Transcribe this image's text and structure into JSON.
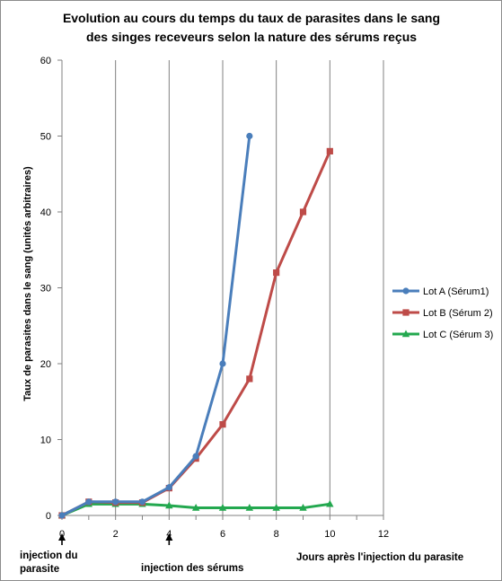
{
  "chart_data": {
    "type": "line",
    "title_line1": "Evolution au cours du temps du taux de parasites dans le sang",
    "title_line2": "des singes receveurs selon la nature des sérums reçus",
    "xlabel": "Jours après l'injection  du parasite",
    "ylabel": "Taux de parasites dans le sang (unités arbitraires)",
    "xlim": [
      0,
      12
    ],
    "ylim": [
      0,
      60
    ],
    "xticks": [
      "0",
      "2",
      "4",
      "6",
      "8",
      "10",
      "12"
    ],
    "yticks": [
      "0",
      "10",
      "20",
      "30",
      "40",
      "50",
      "60"
    ],
    "grid": "vertical",
    "legend_position": "right",
    "series": [
      {
        "name": "Lot A (Sérum1)",
        "color": "#4a7ebb",
        "marker": "circle",
        "x": [
          0,
          1,
          2,
          3,
          4,
          5,
          6,
          7
        ],
        "values": [
          0,
          1.8,
          1.8,
          1.8,
          3.7,
          7.8,
          20,
          50
        ]
      },
      {
        "name": "Lot B (Sérum 2)",
        "color": "#be4b48",
        "marker": "square",
        "x": [
          0,
          1,
          2,
          3,
          4,
          5,
          6,
          7,
          8,
          9,
          10
        ],
        "values": [
          0,
          1.8,
          1.7,
          1.7,
          3.6,
          7.5,
          12,
          18,
          32,
          40,
          48
        ]
      },
      {
        "name": "Lot C (Sérum 3)",
        "color": "#23a84f",
        "marker": "triangle",
        "x": [
          0,
          1,
          2,
          3,
          4,
          5,
          6,
          7,
          8,
          9,
          10
        ],
        "values": [
          0,
          1.5,
          1.5,
          1.5,
          1.3,
          1.0,
          1.0,
          1.0,
          1.0,
          1.0,
          1.5
        ]
      }
    ],
    "annotations": {
      "parasite_injection": "injection du\nparasite",
      "serum_injection": "injection des sérums"
    }
  }
}
